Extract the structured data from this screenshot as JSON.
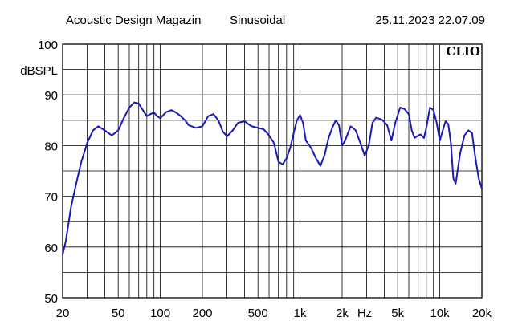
{
  "header": {
    "source": "Acoustic Design Magazin",
    "signal": "Sinusoidal",
    "timestamp": "25.11.2023 22.07.09"
  },
  "brand": "CLIO",
  "colors": {
    "curve": "#1a1ab4",
    "grid": "#000000",
    "background": "#ffffff"
  },
  "chart_data": {
    "type": "line",
    "title": "",
    "xlabel": "Hz",
    "ylabel": "dBSPL",
    "x_scale": "log",
    "xlim": [
      20,
      20000
    ],
    "ylim": [
      50,
      100
    ],
    "grid": true,
    "x_ticks": [
      {
        "value": 20,
        "label": "20"
      },
      {
        "value": 50,
        "label": "50"
      },
      {
        "value": 100,
        "label": "100"
      },
      {
        "value": 200,
        "label": "200"
      },
      {
        "value": 500,
        "label": "500"
      },
      {
        "value": 1000,
        "label": "1k"
      },
      {
        "value": 2000,
        "label": "2k"
      },
      {
        "value": 5000,
        "label": "5k"
      },
      {
        "value": 10000,
        "label": "10k"
      },
      {
        "value": 20000,
        "label": "20k"
      }
    ],
    "y_ticks": [
      50,
      60,
      70,
      80,
      90,
      100
    ],
    "series": [
      {
        "x": [
          20,
          21,
          22,
          23,
          25,
          27,
          30,
          33,
          36,
          40,
          45,
          50,
          55,
          60,
          65,
          70,
          75,
          80,
          85,
          90,
          95,
          100,
          110,
          120,
          130,
          140,
          150,
          160,
          180,
          200,
          220,
          240,
          260,
          280,
          300,
          330,
          360,
          400,
          450,
          500,
          550,
          600,
          650,
          700,
          750,
          800,
          850,
          900,
          950,
          1000,
          1050,
          1100,
          1200,
          1300,
          1400,
          1500,
          1600,
          1700,
          1800,
          1900,
          2000,
          2100,
          2300,
          2500,
          2700,
          2900,
          3100,
          3300,
          3500,
          3700,
          3900,
          4200,
          4500,
          4800,
          5200,
          5600,
          6000,
          6300,
          6600,
          7000,
          7300,
          7700,
          8000,
          8500,
          9000,
          9500,
          10000,
          10500,
          11000,
          11500,
          12000,
          12500,
          13000,
          14000,
          15000,
          16000,
          17000,
          18000,
          19000,
          20000
        ],
        "y": [
          58.5,
          61,
          64.5,
          68,
          72.5,
          76.5,
          80.5,
          83,
          83.8,
          83,
          82,
          83,
          85.5,
          87.5,
          88.5,
          88.3,
          87,
          85.8,
          86.2,
          86.5,
          85.8,
          85.4,
          86.6,
          87,
          86.5,
          85.8,
          85,
          84,
          83.5,
          83.8,
          85.8,
          86.2,
          85,
          82.8,
          81.8,
          83,
          84.5,
          84.8,
          83.8,
          83.5,
          83.2,
          82,
          80.5,
          76.8,
          76.3,
          77.5,
          79.5,
          82.5,
          85,
          86,
          84.5,
          81,
          79.5,
          77.5,
          76,
          78.2,
          81.5,
          83.5,
          85,
          84,
          80,
          81,
          83.8,
          83,
          80.5,
          78,
          80,
          84.5,
          85.5,
          85.3,
          85,
          84,
          81,
          84.5,
          87.5,
          87.2,
          86.2,
          83,
          81.5,
          82,
          82.2,
          81.5,
          83.5,
          87.5,
          87,
          84.5,
          81,
          83,
          84.8,
          84.2,
          80.5,
          73.5,
          72.5,
          78.5,
          82,
          83,
          82.5,
          77.5,
          73.5,
          71.5
        ]
      }
    ]
  }
}
